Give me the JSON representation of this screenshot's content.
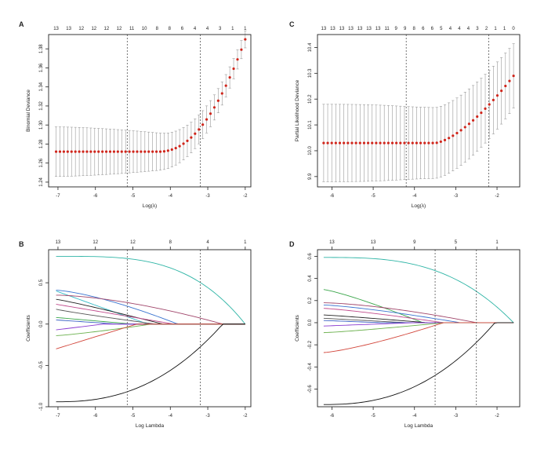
{
  "colors": {
    "frame": "#222222",
    "error_bar": "#9a9a9a",
    "point": "#d0261c",
    "vline": "#555555"
  },
  "chart_data": [
    {
      "id": "A",
      "panel_label": "A",
      "type": "scatter",
      "xlabel": "Log(λ)",
      "ylabel": "Binomial Deviance",
      "xlim": [
        -7.25,
        -1.85
      ],
      "ylim": [
        1.235,
        1.395
      ],
      "xticks": [
        -7,
        -6,
        -5,
        -4,
        -3,
        -2
      ],
      "xtick_labels": [
        "-7",
        "-6",
        "-5",
        "-4",
        "-3",
        "-2"
      ],
      "yticks": [
        1.24,
        1.26,
        1.28,
        1.3,
        1.32,
        1.34,
        1.36,
        1.38
      ],
      "ytick_labels": [
        "1.24",
        "1.26",
        "1.28",
        "1.30",
        "1.32",
        "1.34",
        "1.36",
        "1.38"
      ],
      "top_labels": [
        "13",
        "13",
        "12",
        "12",
        "12",
        "12",
        "11",
        "10",
        "8",
        "8",
        "6",
        "4",
        "4",
        "3",
        "1",
        "1"
      ],
      "vlines": [
        -5.15,
        -3.2
      ],
      "x_range": [
        -7.05,
        -2.0
      ],
      "n_points": 50,
      "flat_y": 1.272,
      "flat_until": -4.3,
      "end_y": 1.39,
      "curve_power": 2.1,
      "err_base": 0.026,
      "err_end": 0.009,
      "err_shape": "shrink"
    },
    {
      "id": "C",
      "panel_label": "C",
      "type": "scatter",
      "xlabel": "Log(λ)",
      "ylabel": "Partial Likelihood Deviance",
      "xlim": [
        -6.35,
        -1.45
      ],
      "ylim": [
        9.86,
        10.45
      ],
      "xticks": [
        -6,
        -5,
        -4,
        -3,
        -2
      ],
      "xtick_labels": [
        "-6",
        "-5",
        "-4",
        "-3",
        "-2"
      ],
      "yticks": [
        9.9,
        10.0,
        10.1,
        10.2,
        10.3,
        10.4
      ],
      "ytick_labels": [
        "9.9",
        "10.0",
        "10.1",
        "10.2",
        "10.3",
        "10.4"
      ],
      "top_labels": [
        "13",
        "13",
        "13",
        "13",
        "13",
        "13",
        "13",
        "11",
        "9",
        "9",
        "8",
        "6",
        "6",
        "5",
        "4",
        "4",
        "4",
        "3",
        "2",
        "1",
        "1",
        "0"
      ],
      "vlines": [
        -4.2,
        -2.2
      ],
      "x_range": [
        -6.2,
        -1.6
      ],
      "n_points": 48,
      "flat_y": 10.03,
      "flat_until": -3.5,
      "end_y": 10.29,
      "curve_power": 1.5,
      "err_base": 0.15,
      "err_end": 0.125,
      "err_shape": "pinch"
    },
    {
      "id": "B",
      "panel_label": "B",
      "type": "line",
      "xlabel": "Log Lambda",
      "ylabel": "Coefficients",
      "xlim": [
        -7.25,
        -1.85
      ],
      "ylim": [
        -1.0,
        0.9
      ],
      "xticks": [
        -7,
        -6,
        -5,
        -4,
        -3,
        -2
      ],
      "xtick_labels": [
        "-7",
        "-6",
        "-5",
        "-4",
        "-3",
        "-2"
      ],
      "yticks": [
        -1.0,
        -0.5,
        0.0,
        0.5
      ],
      "ytick_labels": [
        "-1.0",
        "-0.5",
        "0.0",
        "0.5"
      ],
      "top_label_x": [
        -7,
        -6,
        -5,
        -4,
        -3,
        -2
      ],
      "top_labels": [
        "13",
        "12",
        "12",
        "8",
        "4",
        "1"
      ],
      "vlines": [
        -5.15,
        -3.2
      ],
      "x_range": [
        -7.05,
        -2.0
      ],
      "series": [
        {
          "start": 0.82,
          "zero_at": -2.0,
          "shape": 3.5,
          "color": "#2fb5a6"
        },
        {
          "start": 0.41,
          "zero_at": -3.8,
          "shape": 1.4,
          "color": "#3a74d0"
        },
        {
          "start": 0.4,
          "zero_at": -4.6,
          "shape": 1.0,
          "color": "#34bcc7"
        },
        {
          "start": 0.35,
          "zero_at": -2.6,
          "shape": 1.6,
          "color": "#a0456a"
        },
        {
          "start": 0.3,
          "zero_at": -4.2,
          "shape": 1.1,
          "color": "#222222"
        },
        {
          "start": 0.24,
          "zero_at": -3.9,
          "shape": 1.0,
          "color": "#c04a8c"
        },
        {
          "start": 0.18,
          "zero_at": -4.4,
          "shape": 0.9,
          "color": "#555555"
        },
        {
          "start": 0.08,
          "zero_at": -5.0,
          "shape": 1.0,
          "color": "#3aa64a"
        },
        {
          "start": 0.05,
          "zero_at": -5.4,
          "shape": 1.0,
          "color": "#3a60c4"
        },
        {
          "start": -0.07,
          "zero_at": -5.8,
          "shape": 1.0,
          "color": "#8a3ad0"
        },
        {
          "start": -0.14,
          "zero_at": -4.5,
          "shape": 1.2,
          "color": "#6ab04c"
        },
        {
          "start": -0.3,
          "zero_at": -4.9,
          "shape": 1.0,
          "color": "#d2453a"
        },
        {
          "start": -0.94,
          "zero_at": -2.6,
          "shape": 2.4,
          "color": "#111111"
        }
      ]
    },
    {
      "id": "D",
      "panel_label": "D",
      "type": "line",
      "xlabel": "Log Lambda",
      "ylabel": "Coefficients",
      "xlim": [
        -6.35,
        -1.45
      ],
      "ylim": [
        -0.76,
        0.66
      ],
      "xticks": [
        -6,
        -5,
        -4,
        -3,
        -2
      ],
      "xtick_labels": [
        "-6",
        "-5",
        "-4",
        "-3",
        "-2"
      ],
      "yticks": [
        -0.6,
        -0.4,
        -0.2,
        0.0,
        0.2,
        0.4,
        0.6
      ],
      "ytick_labels": [
        "-0.6",
        "-0.4",
        "-0.2",
        "0.0",
        "0.2",
        "0.4",
        "0.6"
      ],
      "top_label_x": [
        -6,
        -5,
        -4,
        -3,
        -2
      ],
      "top_labels": [
        "13",
        "13",
        "9",
        "5",
        "1"
      ],
      "vlines": [
        -3.5,
        -2.5
      ],
      "x_range": [
        -6.2,
        -1.6
      ],
      "series": [
        {
          "start": 0.59,
          "zero_at": -1.6,
          "shape": 3.0,
          "color": "#2fb5a6"
        },
        {
          "start": 0.3,
          "zero_at": -3.8,
          "shape": 1.2,
          "color": "#3aa64a"
        },
        {
          "start": 0.18,
          "zero_at": -2.5,
          "shape": 1.5,
          "color": "#a0456a"
        },
        {
          "start": 0.16,
          "zero_at": -2.9,
          "shape": 1.3,
          "color": "#3a74d0"
        },
        {
          "start": 0.13,
          "zero_at": -3.3,
          "shape": 1.2,
          "color": "#c04a8c"
        },
        {
          "start": 0.07,
          "zero_at": -3.7,
          "shape": 1.1,
          "color": "#222222"
        },
        {
          "start": 0.04,
          "zero_at": -4.2,
          "shape": 1.0,
          "color": "#555555"
        },
        {
          "start": 0.02,
          "zero_at": -4.8,
          "shape": 1.0,
          "color": "#3a60c4"
        },
        {
          "start": -0.03,
          "zero_at": -4.0,
          "shape": 1.0,
          "color": "#8a3ad0"
        },
        {
          "start": -0.09,
          "zero_at": -3.3,
          "shape": 1.2,
          "color": "#6ab04c"
        },
        {
          "start": -0.27,
          "zero_at": -3.3,
          "shape": 1.3,
          "color": "#d2453a"
        },
        {
          "start": -0.74,
          "zero_at": -2.05,
          "shape": 2.4,
          "color": "#111111"
        }
      ]
    }
  ]
}
